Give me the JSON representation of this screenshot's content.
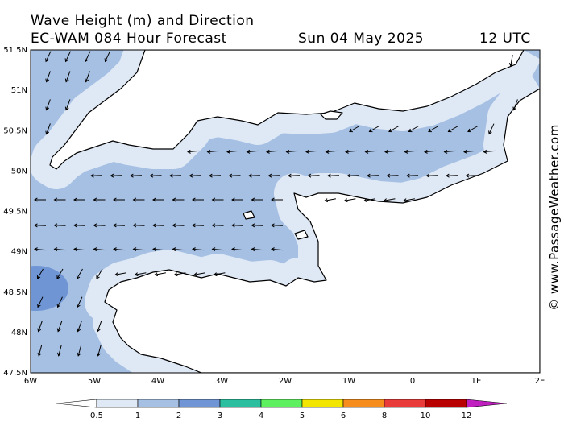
{
  "header": {
    "title": "Wave Height (m) and Direction",
    "model": "EC-WAM 084 Hour Forecast",
    "date": "Sun 04 May 2025",
    "time": "12 UTC"
  },
  "map": {
    "lat_labels": [
      "51.5N",
      "51N",
      "50.5N",
      "50N",
      "49.5N",
      "49N",
      "48.5N",
      "48N",
      "47.5N"
    ],
    "lon_labels": [
      "6W",
      "5W",
      "4W",
      "3W",
      "2W",
      "1W",
      "0",
      "1E",
      "2E"
    ]
  },
  "colorbar": {
    "labels": [
      "0.5",
      "1",
      "2",
      "3",
      "4",
      "5",
      "6",
      "8",
      "10",
      "12"
    ],
    "colors": [
      "#dfe8f5",
      "#a6c0e4",
      "#6f95d4",
      "#2bbf9f",
      "#5ef05e",
      "#f2e600",
      "#f58c1c",
      "#ea3b3b",
      "#b80000",
      "#c020c0"
    ]
  },
  "watermark": "© www.PassageWeather.com"
}
